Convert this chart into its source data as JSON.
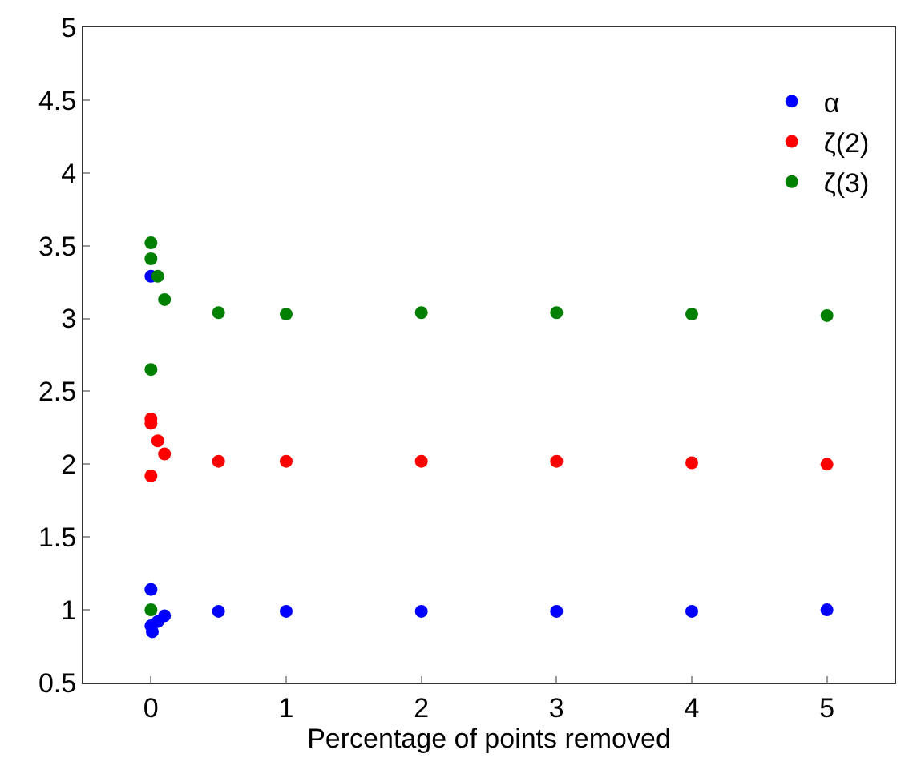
{
  "chart_data": {
    "type": "scatter",
    "xlabel": "Percentage of points removed",
    "xlim": [
      -0.5,
      5.5
    ],
    "xticks": [
      0,
      1,
      2,
      3,
      4,
      5
    ],
    "ylim": [
      0.5,
      5
    ],
    "yticks": [
      0.5,
      1,
      1.5,
      2,
      2.5,
      3,
      3.5,
      4,
      4.5,
      5
    ],
    "legend": "top right",
    "marker": "circle",
    "series": [
      {
        "name": "α",
        "color": "#0000ff",
        "x": [
          0,
          0,
          0,
          0.01,
          0.05,
          0.1,
          0.5,
          1,
          2,
          3,
          4,
          5
        ],
        "values": [
          3.29,
          1.14,
          0.89,
          0.85,
          0.92,
          0.96,
          0.99,
          0.99,
          0.99,
          0.99,
          0.99,
          1.0
        ]
      },
      {
        "name": "ζ(2)",
        "color": "#ff0000",
        "x": [
          0,
          0,
          0.05,
          0.1,
          0,
          0.5,
          1,
          2,
          3,
          4,
          5
        ],
        "values": [
          2.31,
          2.28,
          2.16,
          2.07,
          1.92,
          2.02,
          2.02,
          2.02,
          2.02,
          2.01,
          2.0
        ]
      },
      {
        "name": "ζ(3)",
        "color": "#008000",
        "x": [
          0,
          0,
          0.05,
          0.1,
          0,
          0,
          0.5,
          1,
          2,
          3,
          4,
          5
        ],
        "values": [
          3.52,
          3.41,
          3.29,
          3.13,
          2.65,
          1.0,
          3.04,
          3.03,
          3.04,
          3.04,
          3.03,
          3.02
        ]
      }
    ]
  }
}
